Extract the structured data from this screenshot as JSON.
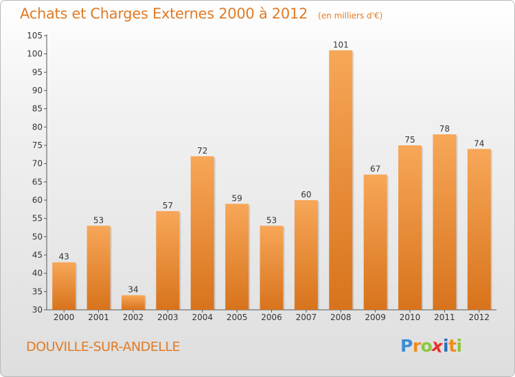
{
  "header": {
    "title": "Achats et Charges Externes 2000 à 2012",
    "subtitle": "(en milliers d'€)"
  },
  "footer": {
    "commune": "DOUVILLE-SUR-ANDELLE",
    "logo_letters": [
      "P",
      "r",
      "o",
      "x",
      "i",
      "t",
      "i"
    ],
    "logo_colors": [
      "#3c8ed8",
      "#f08a1c",
      "#8cc63e",
      "#e8312a",
      "#2a6fbf",
      "#f08a1c",
      "#8cc63e"
    ]
  },
  "colors": {
    "bar_light": "#f7a758",
    "bar_dark": "#d8731c",
    "accent": "#e07b26"
  },
  "chart_data": {
    "type": "bar",
    "title": "Achats et Charges Externes 2000 à 2012",
    "subtitle": "(en milliers d'€)",
    "categories": [
      "2000",
      "2001",
      "2002",
      "2003",
      "2004",
      "2005",
      "2006",
      "2007",
      "2008",
      "2009",
      "2010",
      "2011",
      "2012"
    ],
    "values": [
      43,
      53,
      34,
      57,
      72,
      59,
      53,
      60,
      101,
      67,
      75,
      78,
      74
    ],
    "ylim": [
      30,
      105
    ],
    "yticks": [
      30,
      35,
      40,
      45,
      50,
      55,
      60,
      65,
      70,
      75,
      80,
      85,
      90,
      95,
      100,
      105
    ],
    "grid": false,
    "data_labels": true
  }
}
